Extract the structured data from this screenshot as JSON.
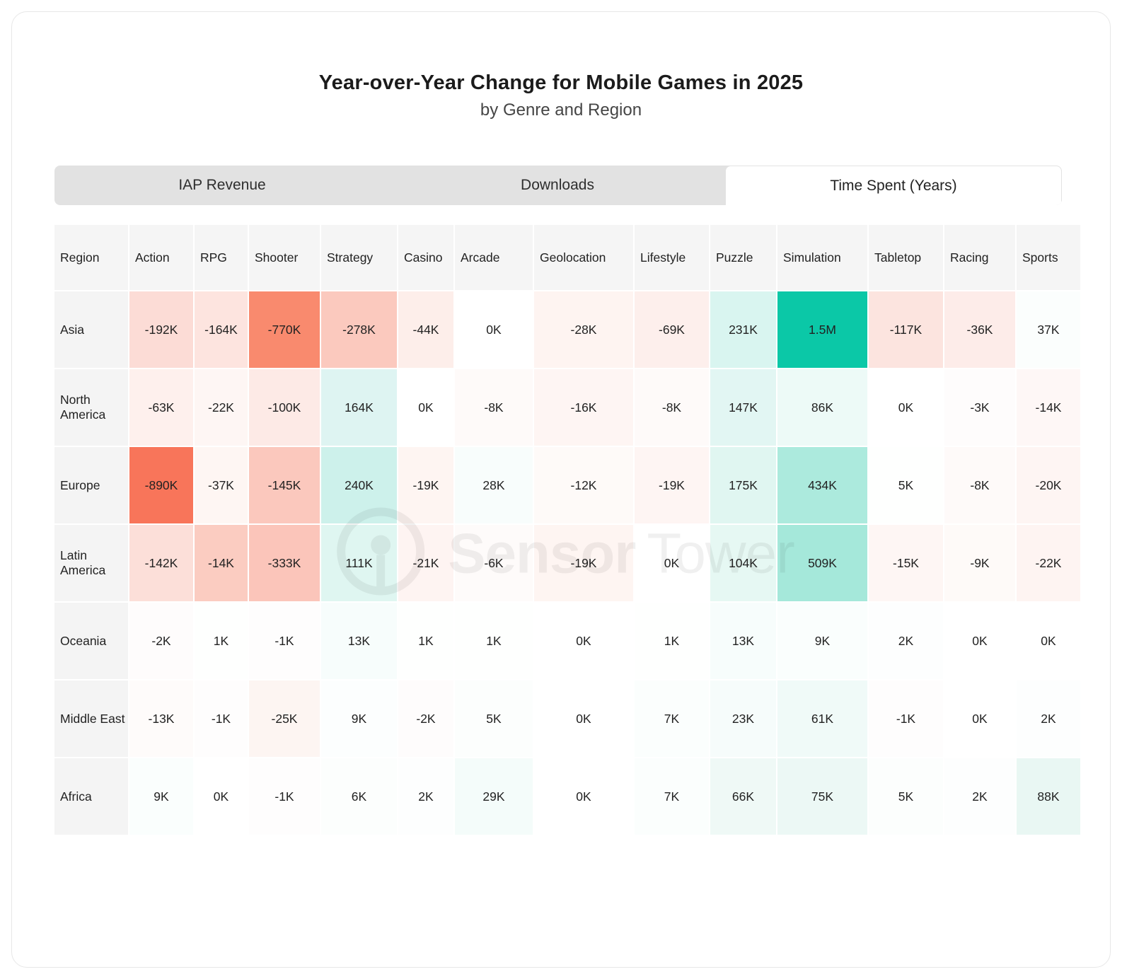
{
  "header": {
    "title": "Year-over-Year Change for Mobile Games in 2025",
    "subtitle": "by Genre and Region"
  },
  "tabs": [
    {
      "label": "IAP Revenue",
      "active": false
    },
    {
      "label": "Downloads",
      "active": false
    },
    {
      "label": "Time Spent (Years)",
      "active": true
    }
  ],
  "watermark": {
    "brand_bold": "Sensor",
    "brand_light": "Tower"
  },
  "chart_data": {
    "type": "heatmap",
    "title": "Year-over-Year Change for Mobile Games in 2025",
    "subtitle": "by Genre and Region",
    "metrics": [
      "IAP Revenue",
      "Downloads",
      "Time Spent (Years)"
    ],
    "active_metric": "Time Spent (Years)",
    "row_header_label": "Region",
    "columns": [
      "Action",
      "RPG",
      "Shooter",
      "Strategy",
      "Casino",
      "Arcade",
      "Geolocation",
      "Lifestyle",
      "Puzzle",
      "Simulation",
      "Tabletop",
      "Racing",
      "Sports"
    ],
    "rows": [
      "Asia",
      "North America",
      "Europe",
      "Latin America",
      "Oceania",
      "Middle East",
      "Africa"
    ],
    "values": [
      [
        "-192K",
        "-164K",
        "-770K",
        "-278K",
        "-44K",
        "0K",
        "-28K",
        "-69K",
        "231K",
        "1.5M",
        "-117K",
        "-36K",
        "37K"
      ],
      [
        "-63K",
        "-22K",
        "-100K",
        "164K",
        "0K",
        "-8K",
        "-16K",
        "-8K",
        "147K",
        "86K",
        "0K",
        "-3K",
        "-14K"
      ],
      [
        "-890K",
        "-37K",
        "-145K",
        "240K",
        "-19K",
        "28K",
        "-12K",
        "-19K",
        "175K",
        "434K",
        "5K",
        "-8K",
        "-20K"
      ],
      [
        "-142K",
        "-14K",
        "-333K",
        "111K",
        "-21K",
        "-6K",
        "-19K",
        "0K",
        "104K",
        "509K",
        "-15K",
        "-9K",
        "-22K"
      ],
      [
        "-2K",
        "1K",
        "-1K",
        "13K",
        "1K",
        "1K",
        "0K",
        "1K",
        "13K",
        "9K",
        "2K",
        "0K",
        "0K"
      ],
      [
        "-13K",
        "-1K",
        "-25K",
        "9K",
        "-2K",
        "5K",
        "0K",
        "7K",
        "23K",
        "61K",
        "-1K",
        "0K",
        "2K"
      ],
      [
        "9K",
        "0K",
        "-1K",
        "6K",
        "2K",
        "29K",
        "0K",
        "7K",
        "66K",
        "75K",
        "5K",
        "2K",
        "88K"
      ]
    ],
    "cell_colors": [
      [
        "#fcdcd6",
        "#fde4df",
        "#f98a6e",
        "#fbc9be",
        "#fdeeea",
        "#ffffff",
        "#fef4f1",
        "#fdefec",
        "#d9f5f0",
        "#0bc8a7",
        "#fce4df",
        "#fdece9",
        "#fbfefd"
      ],
      [
        "#fef0ed",
        "#fef6f4",
        "#fdeae6",
        "#def4f2",
        "#ffffff",
        "#fefaf9",
        "#fef5f3",
        "#fefaf9",
        "#e2f6f3",
        "#edfaf7",
        "#ffffff",
        "#fefcfc",
        "#fef7f6"
      ],
      [
        "#f8755a",
        "#fef6f3",
        "#fbc8bd",
        "#cdf1eb",
        "#fef5f2",
        "#f8fdfc",
        "#fefaf8",
        "#fef5f3",
        "#e0f6f1",
        "#aceadd",
        "#fefffe",
        "#fefaf9",
        "#fef5f3"
      ],
      [
        "#fcdfd9",
        "#fbccc1",
        "#fbc5ba",
        "#dff6f1",
        "#fef4f2",
        "#fefbfa",
        "#fef5f2",
        "#ffffff",
        "#e6f8f3",
        "#a5e8da",
        "#fef6f4",
        "#fefaf8",
        "#fef4f2"
      ],
      [
        "#fefcfc",
        "#fefffe",
        "#fefdfd",
        "#f7fdfc",
        "#fefffe",
        "#fefffe",
        "#ffffff",
        "#fefffe",
        "#f7fdfc",
        "#fafefd",
        "#fdfefe",
        "#ffffff",
        "#ffffff"
      ],
      [
        "#fefbfa",
        "#fefdfd",
        "#fdf5f2",
        "#fcfefe",
        "#fefcfc",
        "#fcfefd",
        "#ffffff",
        "#fbfefd",
        "#f6fcfb",
        "#f0faf8",
        "#fefdfd",
        "#ffffff",
        "#fdfefe"
      ],
      [
        "#fafefd",
        "#ffffff",
        "#fefdfd",
        "#fcfefd",
        "#fdfefe",
        "#f4fcfa",
        "#ffffff",
        "#fbfefd",
        "#eff9f6",
        "#ecf8f5",
        "#fcfefd",
        "#fdfefe",
        "#e9f7f3"
      ]
    ],
    "positive_color": "#0bc8a7",
    "negative_color": "#f8755a",
    "legend_position": "none",
    "grid": false
  }
}
